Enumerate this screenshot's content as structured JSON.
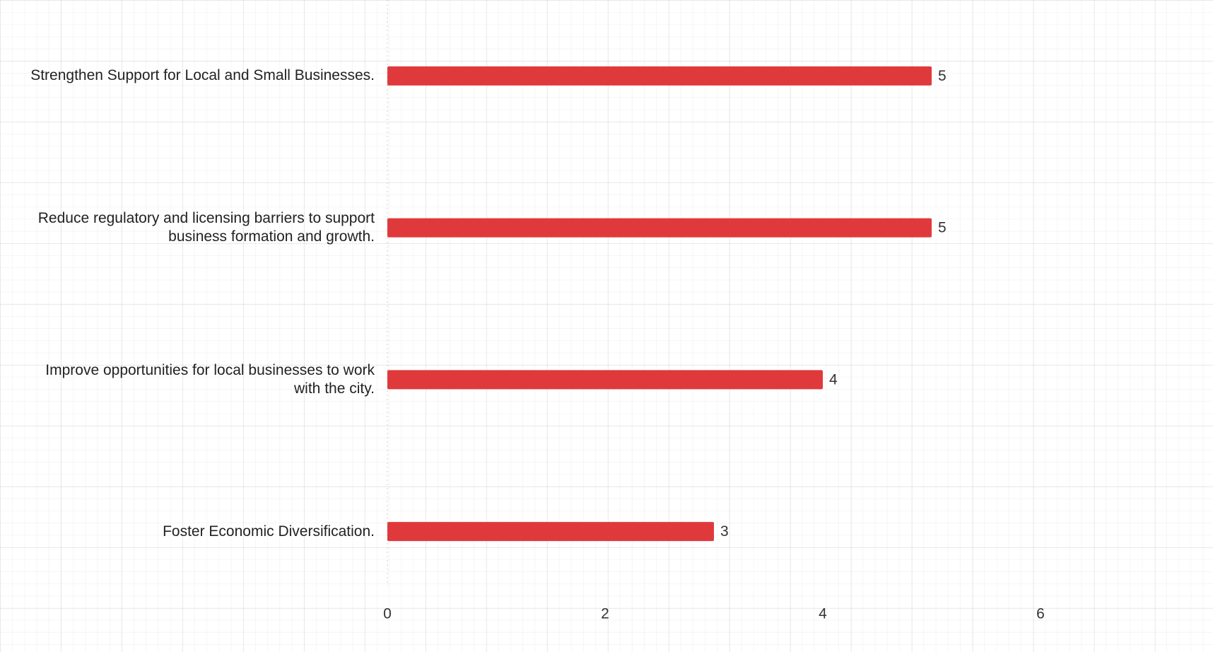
{
  "chart_data": {
    "type": "bar",
    "orientation": "horizontal",
    "categories": [
      "Strengthen Support for Local and Small Businesses.",
      "Reduce regulatory and licensing barriers to support business formation and growth.",
      "Improve opportunities for local businesses to work with the city.",
      "Foster Economic Diversification."
    ],
    "values": [
      5,
      5,
      4,
      3
    ],
    "color": "#e0393b",
    "xlim": [
      0,
      7.5
    ],
    "xticks": [
      0,
      2,
      4,
      6
    ],
    "grid": false
  }
}
